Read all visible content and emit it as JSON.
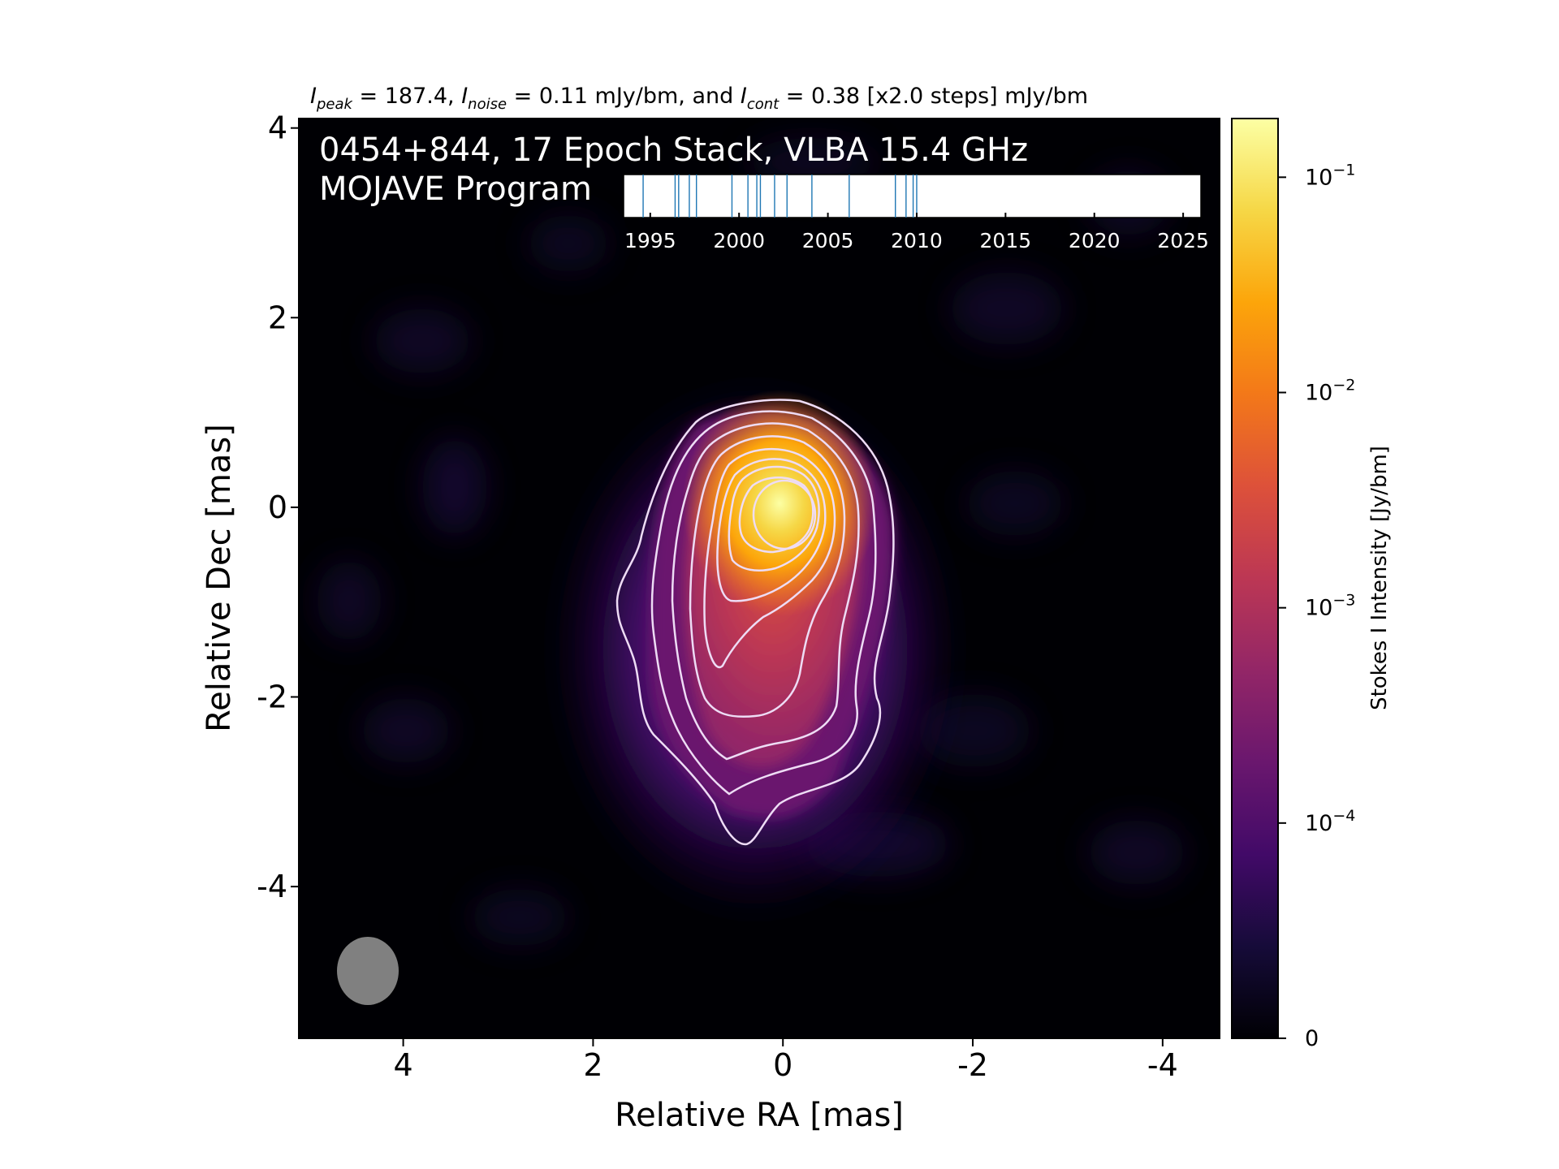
{
  "figure": {
    "header": {
      "i_peak_symbol": "I",
      "i_peak_sub": "peak",
      "i_peak_value": " = 187.4, ",
      "i_noise_symbol": "I",
      "i_noise_sub": "noise",
      "i_noise_value": " = 0.11 mJy/bm, and ",
      "i_cont_symbol": "I",
      "i_cont_sub": "cont",
      "i_cont_value": " = 0.38 [x2.0 steps] mJy/bm"
    },
    "overlay_title_line1": "0454+844, 17 Epoch Stack, VLBA 15.4 GHz",
    "overlay_title_line2": "MOJAVE Program",
    "xlabel": "Relative RA [mas]",
    "ylabel": "Relative Dec [mas]",
    "colorbar_label": "Stokes I Intensity [Jy/bm]"
  },
  "colors": {
    "background": "#000004",
    "contour": "#eedcf5",
    "beam": "#808080",
    "epoch_line": "#1f77b4"
  },
  "chart_data": [
    {
      "type": "heatmap",
      "description_source": "Stokes I intensity image with contours",
      "xlim": [
        5.1,
        -4.6
      ],
      "ylim": [
        -5.6,
        4.1
      ],
      "xticks": [
        4,
        2,
        0,
        -2,
        -4
      ],
      "xtick_labels": [
        "4",
        "2",
        "0",
        "-2",
        "-4"
      ],
      "yticks": [
        4,
        2,
        0,
        -2,
        -4
      ],
      "ytick_labels": [
        "4",
        "2",
        "0",
        "-2",
        "-4"
      ],
      "colormap": "inferno",
      "color_scale": "log",
      "colorbar_ticks": [
        {
          "value": 0.1,
          "base": "10",
          "exp": "−1"
        },
        {
          "value": 0.01,
          "base": "10",
          "exp": "−2"
        },
        {
          "value": 0.001,
          "base": "10",
          "exp": "−3"
        },
        {
          "value": 0.0001,
          "base": "10",
          "exp": "−4"
        },
        {
          "value": 0,
          "base": "0",
          "exp": ""
        }
      ],
      "colorbar_range": [
        0,
        0.1874
      ],
      "peak": {
        "ra": 0.0,
        "dec": -0.1,
        "intensity": 0.1874
      },
      "contour_levels_mjy": [
        0.38,
        0.76,
        1.52,
        3.04,
        6.08,
        12.16,
        24.32,
        48.64,
        97.28
      ],
      "beam": {
        "ra": 4.4,
        "dec": -4.9,
        "major_mas": 0.7,
        "minor_mas": 0.64
      }
    },
    {
      "type": "scatter",
      "description_source": "epoch timeline inset (vertical ticks)",
      "xlim": [
        1993.5,
        2026.0
      ],
      "xticks": [
        1995,
        2000,
        2005,
        2010,
        2015,
        2020,
        2025
      ],
      "xtick_labels": [
        "1995",
        "2000",
        "2005",
        "2010",
        "2015",
        "2020",
        "2025"
      ],
      "epochs": [
        1994.6,
        1996.4,
        1996.6,
        1997.2,
        1997.6,
        1999.6,
        2000.5,
        2001.0,
        2001.2,
        2002.0,
        2002.7,
        2004.1,
        2006.2,
        2008.8,
        2009.4,
        2009.8,
        2010.0
      ]
    }
  ]
}
